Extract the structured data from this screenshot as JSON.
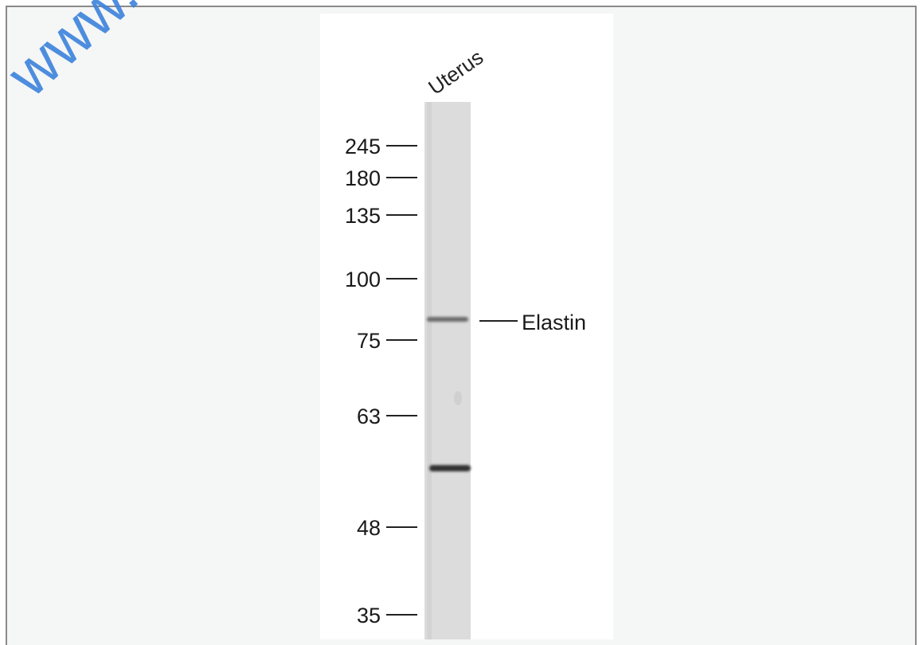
{
  "figure": {
    "watermark": "www.sunlong",
    "lane_label": "Uterus",
    "markers": [
      245,
      180,
      135,
      100,
      75,
      63,
      48,
      35
    ],
    "band_label": "Elastin"
  }
}
